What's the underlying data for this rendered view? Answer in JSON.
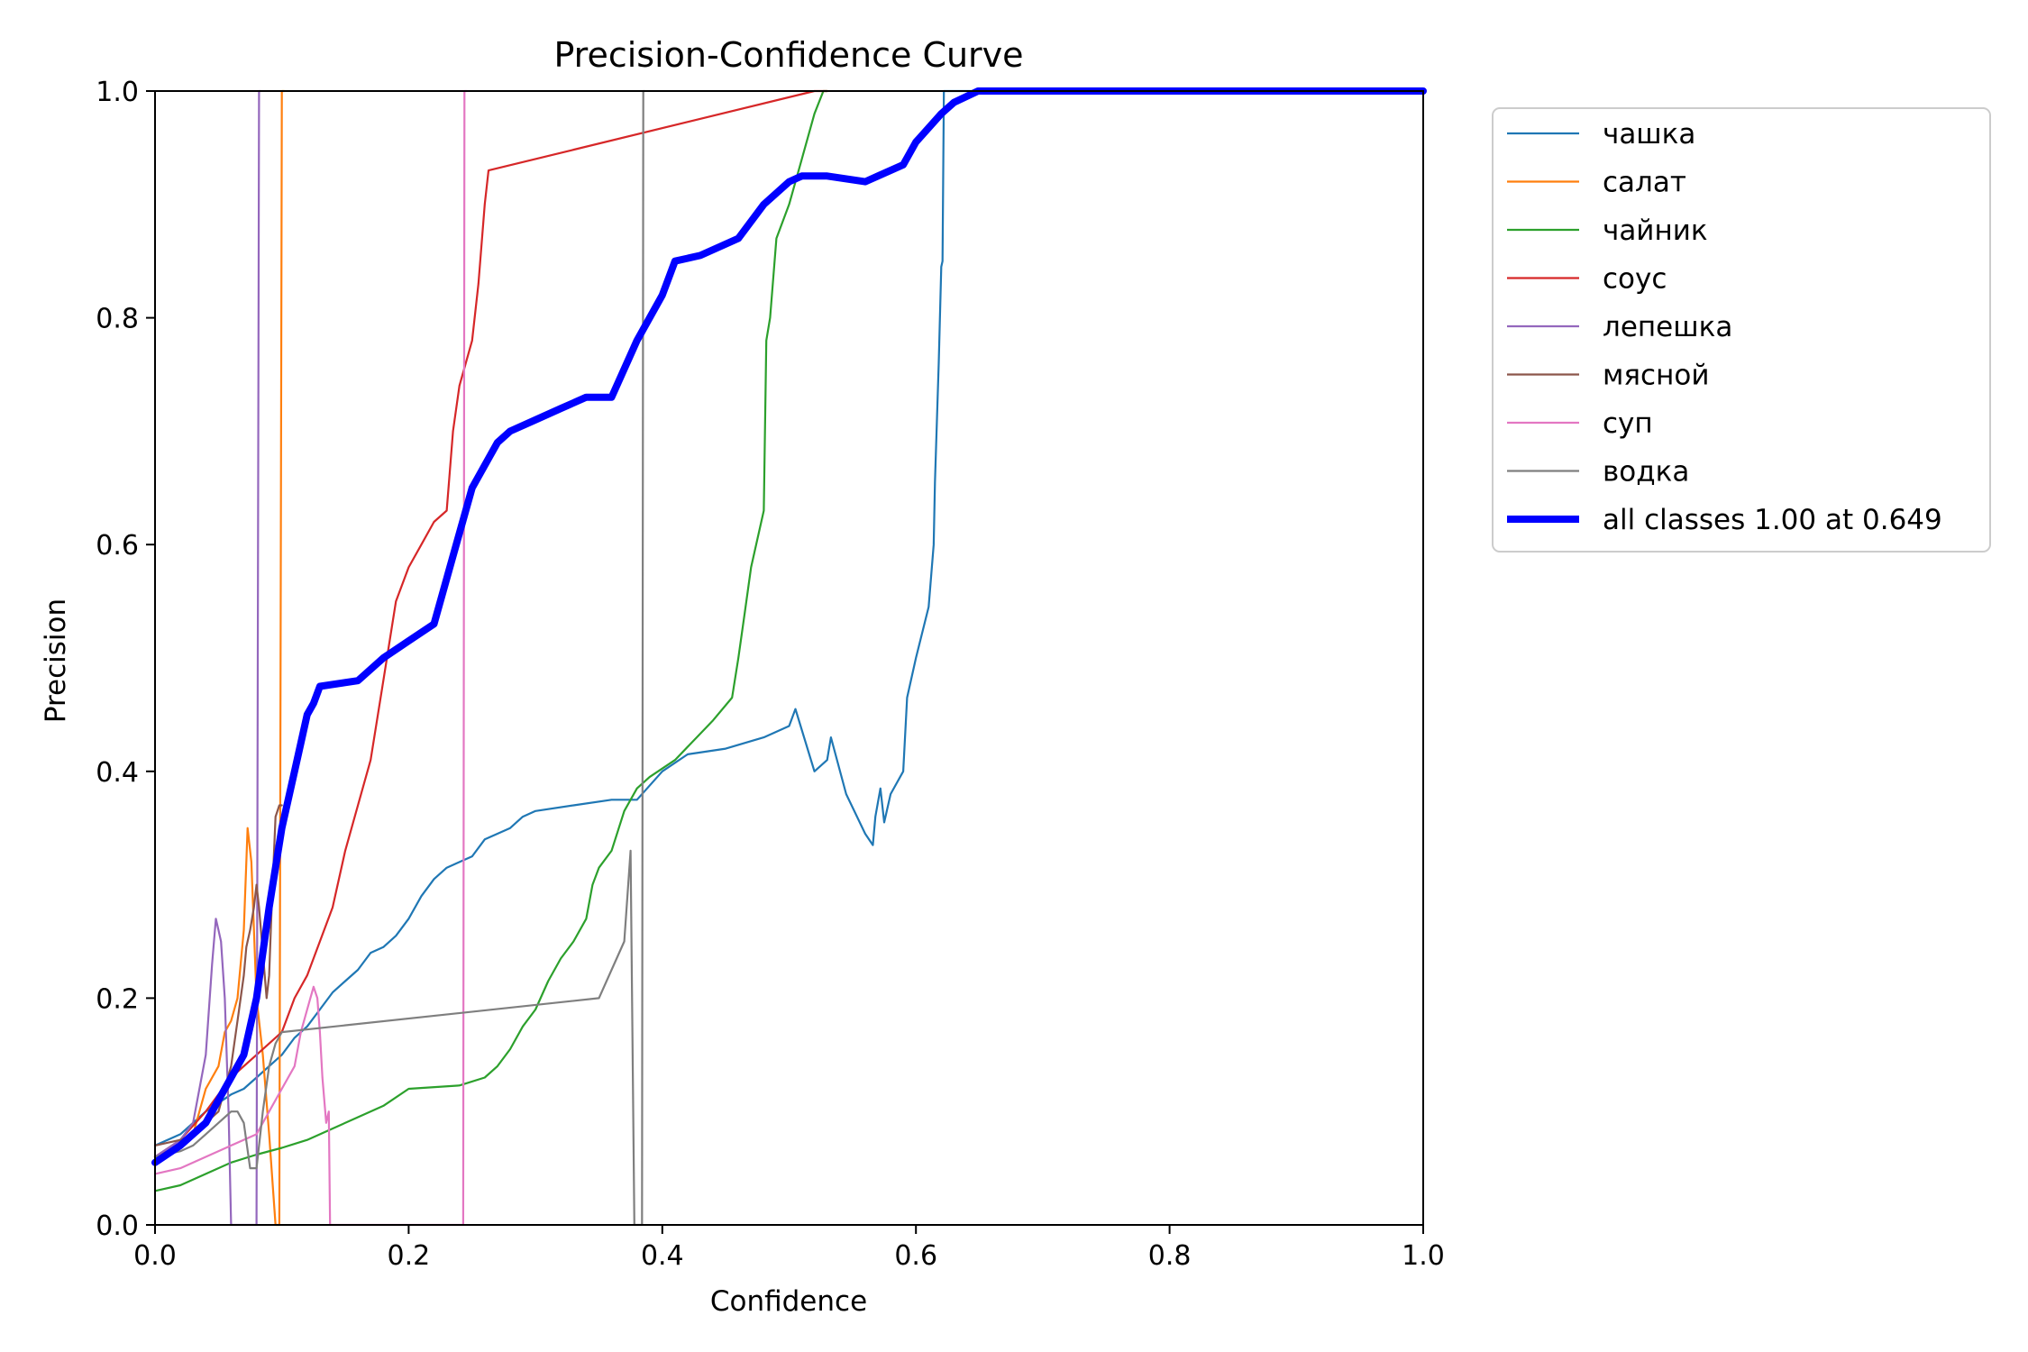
{
  "chart_data": {
    "type": "line",
    "title": "Precision-Confidence Curve",
    "xlabel": "Confidence",
    "ylabel": "Precision",
    "xlim": [
      0,
      1
    ],
    "ylim": [
      0,
      1
    ],
    "xticks": [
      "0.0",
      "0.2",
      "0.4",
      "0.6",
      "0.8",
      "1.0"
    ],
    "yticks": [
      "0.0",
      "0.2",
      "0.4",
      "0.6",
      "0.8",
      "1.0"
    ],
    "grid": false,
    "legend_position": "outside-top-right",
    "series": [
      {
        "name": "чашка",
        "color": "#1f77b4",
        "x": [
          0.0,
          0.02,
          0.04,
          0.06,
          0.07,
          0.08,
          0.09,
          0.1,
          0.11,
          0.12,
          0.13,
          0.14,
          0.15,
          0.16,
          0.17,
          0.18,
          0.19,
          0.2,
          0.21,
          0.22,
          0.23,
          0.24,
          0.25,
          0.26,
          0.27,
          0.28,
          0.29,
          0.3,
          0.33,
          0.36,
          0.38,
          0.4,
          0.42,
          0.45,
          0.48,
          0.5,
          0.505,
          0.52,
          0.53,
          0.533,
          0.545,
          0.56,
          0.566,
          0.568,
          0.572,
          0.575,
          0.58,
          0.59,
          0.593,
          0.6,
          0.61,
          0.614,
          0.615,
          0.618,
          0.62,
          0.621,
          0.622,
          0.625,
          0.63,
          1.0
        ],
        "y": [
          0.07,
          0.08,
          0.1,
          0.115,
          0.12,
          0.13,
          0.14,
          0.15,
          0.165,
          0.175,
          0.19,
          0.205,
          0.215,
          0.225,
          0.24,
          0.245,
          0.255,
          0.27,
          0.29,
          0.305,
          0.315,
          0.32,
          0.325,
          0.34,
          0.345,
          0.35,
          0.36,
          0.365,
          0.37,
          0.375,
          0.375,
          0.4,
          0.415,
          0.42,
          0.43,
          0.44,
          0.455,
          0.4,
          0.41,
          0.43,
          0.38,
          0.345,
          0.335,
          0.36,
          0.385,
          0.355,
          0.38,
          0.4,
          0.465,
          0.5,
          0.545,
          0.6,
          0.655,
          0.76,
          0.845,
          0.85,
          1.0,
          1.0,
          1.0,
          1.0
        ]
      },
      {
        "name": "салат",
        "color": "#ff7f0e",
        "x": [
          0.0,
          0.02,
          0.03,
          0.04,
          0.05,
          0.055,
          0.06,
          0.065,
          0.07,
          0.073,
          0.076,
          0.08,
          0.085,
          0.09,
          0.095,
          0.098,
          0.1,
          0.102
        ],
        "y": [
          0.06,
          0.07,
          0.08,
          0.12,
          0.14,
          0.17,
          0.18,
          0.2,
          0.26,
          0.35,
          0.32,
          0.2,
          0.15,
          0.08,
          0.0,
          0.0,
          1.0,
          1.0
        ]
      },
      {
        "name": "чайник",
        "color": "#2ca02c",
        "x": [
          0.0,
          0.02,
          0.04,
          0.06,
          0.08,
          0.1,
          0.12,
          0.14,
          0.16,
          0.18,
          0.2,
          0.24,
          0.26,
          0.27,
          0.28,
          0.29,
          0.3,
          0.31,
          0.32,
          0.33,
          0.34,
          0.345,
          0.35,
          0.36,
          0.37,
          0.38,
          0.39,
          0.41,
          0.44,
          0.455,
          0.46,
          0.465,
          0.47,
          0.48,
          0.482,
          0.485,
          0.49,
          0.5,
          0.51,
          0.52,
          0.527,
          0.53
        ],
        "y": [
          0.03,
          0.035,
          0.045,
          0.055,
          0.062,
          0.068,
          0.075,
          0.085,
          0.095,
          0.105,
          0.12,
          0.123,
          0.13,
          0.14,
          0.155,
          0.175,
          0.19,
          0.215,
          0.235,
          0.25,
          0.27,
          0.3,
          0.315,
          0.33,
          0.365,
          0.385,
          0.395,
          0.41,
          0.445,
          0.465,
          0.5,
          0.54,
          0.58,
          0.63,
          0.78,
          0.8,
          0.87,
          0.9,
          0.94,
          0.98,
          1.0,
          1.0
        ]
      },
      {
        "name": "соус",
        "color": "#d62728",
        "x": [
          0.0,
          0.02,
          0.04,
          0.06,
          0.08,
          0.1,
          0.11,
          0.12,
          0.13,
          0.14,
          0.15,
          0.16,
          0.17,
          0.18,
          0.19,
          0.2,
          0.21,
          0.22,
          0.23,
          0.235,
          0.24,
          0.25,
          0.255,
          0.26,
          0.263,
          0.52,
          0.53
        ],
        "y": [
          0.06,
          0.075,
          0.1,
          0.13,
          0.15,
          0.17,
          0.2,
          0.22,
          0.25,
          0.28,
          0.33,
          0.37,
          0.41,
          0.48,
          0.55,
          0.58,
          0.6,
          0.62,
          0.63,
          0.7,
          0.74,
          0.78,
          0.83,
          0.9,
          0.93,
          1.0,
          1.0
        ]
      },
      {
        "name": "лепешка",
        "color": "#9467bd",
        "x": [
          0.0,
          0.02,
          0.03,
          0.04,
          0.045,
          0.048,
          0.05,
          0.052,
          0.055,
          0.058,
          0.06,
          0.075,
          0.08,
          0.082,
          0.083
        ],
        "y": [
          0.06,
          0.075,
          0.09,
          0.15,
          0.23,
          0.27,
          0.26,
          0.25,
          0.2,
          0.1,
          0.0,
          0.0,
          0.0,
          1.0,
          1.0
        ]
      },
      {
        "name": "мясной",
        "color": "#8c564b",
        "x": [
          0.0,
          0.02,
          0.03,
          0.04,
          0.05,
          0.055,
          0.06,
          0.065,
          0.07,
          0.072,
          0.075,
          0.078,
          0.08,
          0.082,
          0.085,
          0.088,
          0.09,
          0.092,
          0.095,
          0.098,
          0.1
        ],
        "y": [
          0.07,
          0.075,
          0.08,
          0.09,
          0.1,
          0.12,
          0.14,
          0.18,
          0.22,
          0.245,
          0.26,
          0.28,
          0.3,
          0.28,
          0.24,
          0.2,
          0.22,
          0.28,
          0.36,
          0.37,
          0.37
        ]
      },
      {
        "name": "суп",
        "color": "#e377c2",
        "x": [
          0.0,
          0.02,
          0.04,
          0.06,
          0.08,
          0.09,
          0.1,
          0.11,
          0.115,
          0.12,
          0.125,
          0.128,
          0.13,
          0.132,
          0.135,
          0.137,
          0.138,
          0.14,
          0.2,
          0.243,
          0.244,
          0.245,
          0.246
        ],
        "y": [
          0.045,
          0.05,
          0.06,
          0.07,
          0.08,
          0.1,
          0.12,
          0.14,
          0.17,
          0.19,
          0.21,
          0.2,
          0.17,
          0.13,
          0.09,
          0.1,
          0.0,
          0.0,
          0.0,
          0.0,
          1.0,
          1.0,
          1.0
        ]
      },
      {
        "name": "водка",
        "color": "#7f7f7f",
        "x": [
          0.0,
          0.02,
          0.03,
          0.04,
          0.05,
          0.06,
          0.065,
          0.07,
          0.075,
          0.08,
          0.085,
          0.09,
          0.095,
          0.1,
          0.35,
          0.37,
          0.375,
          0.378,
          0.38,
          0.384,
          0.385,
          0.386
        ],
        "y": [
          0.06,
          0.065,
          0.07,
          0.08,
          0.09,
          0.1,
          0.1,
          0.09,
          0.05,
          0.05,
          0.1,
          0.14,
          0.16,
          0.17,
          0.2,
          0.25,
          0.33,
          0.0,
          0.0,
          0.0,
          1.0,
          1.0
        ]
      },
      {
        "name": "all classes 1.00 at 0.649",
        "color": "#0000ff",
        "bold": true,
        "x": [
          0.0,
          0.02,
          0.04,
          0.06,
          0.07,
          0.08,
          0.09,
          0.1,
          0.11,
          0.12,
          0.125,
          0.13,
          0.16,
          0.18,
          0.2,
          0.22,
          0.23,
          0.25,
          0.27,
          0.28,
          0.3,
          0.32,
          0.34,
          0.35,
          0.36,
          0.38,
          0.4,
          0.41,
          0.43,
          0.46,
          0.48,
          0.5,
          0.51,
          0.53,
          0.56,
          0.57,
          0.59,
          0.6,
          0.62,
          0.63,
          0.649,
          1.0
        ],
        "y": [
          0.055,
          0.07,
          0.09,
          0.13,
          0.15,
          0.2,
          0.28,
          0.35,
          0.4,
          0.45,
          0.46,
          0.475,
          0.48,
          0.5,
          0.515,
          0.53,
          0.57,
          0.65,
          0.69,
          0.7,
          0.71,
          0.72,
          0.73,
          0.73,
          0.73,
          0.78,
          0.82,
          0.85,
          0.855,
          0.87,
          0.9,
          0.92,
          0.925,
          0.925,
          0.92,
          0.925,
          0.935,
          0.955,
          0.98,
          0.99,
          1.0,
          1.0
        ]
      }
    ]
  }
}
